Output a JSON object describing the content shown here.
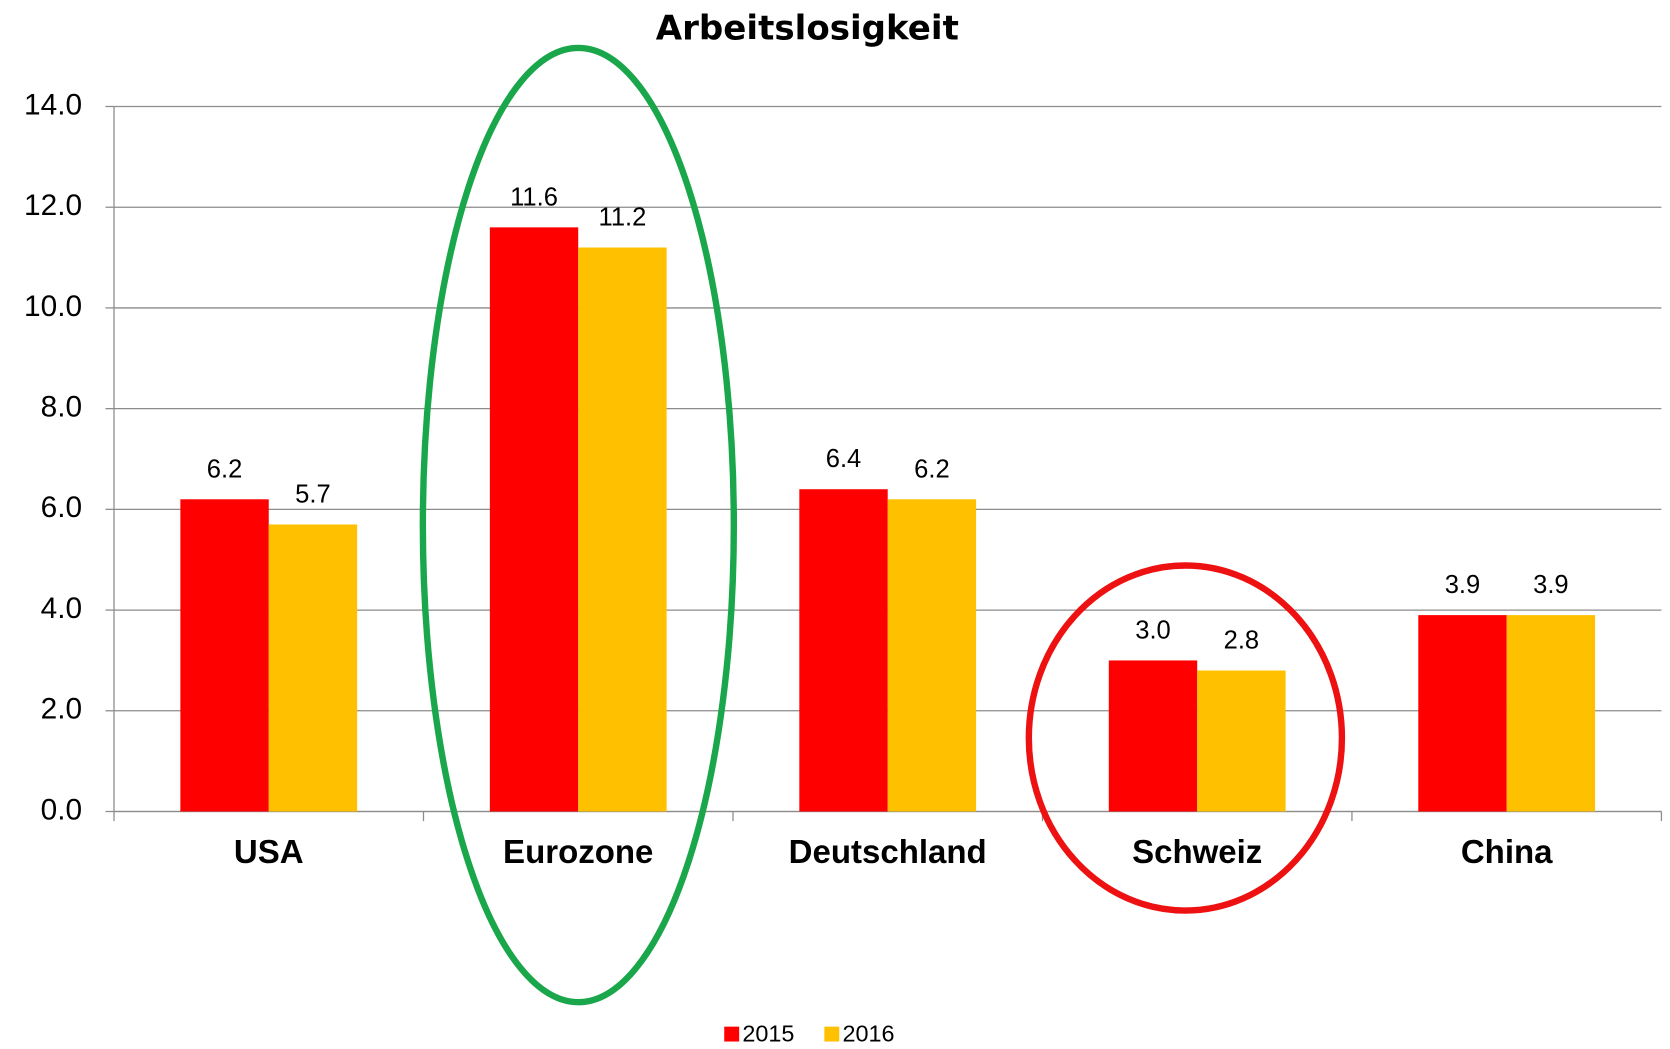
{
  "chart_data": {
    "type": "bar",
    "title": "Arbeitslosigkeit",
    "categories": [
      "USA",
      "Eurozone",
      "Deutschland",
      "Schweiz",
      "China"
    ],
    "series": [
      {
        "name": "2015",
        "color": "#ff0000",
        "values": [
          6.2,
          11.6,
          6.4,
          3.0,
          3.9
        ],
        "value_labels": [
          "6.2",
          "11.6",
          "6.4",
          "3.0",
          "3.9"
        ]
      },
      {
        "name": "2016",
        "color": "#ffc000",
        "values": [
          5.7,
          11.2,
          6.2,
          2.8,
          3.9
        ],
        "value_labels": [
          "5.7",
          "11.2",
          "6.2",
          "2.8",
          "3.9"
        ]
      }
    ],
    "ylim": [
      0,
      14
    ],
    "yticks": [
      {
        "value": 0,
        "label": "0.0"
      },
      {
        "value": 2,
        "label": "2.0"
      },
      {
        "value": 4,
        "label": "4.0"
      },
      {
        "value": 6,
        "label": "6.0"
      },
      {
        "value": 8,
        "label": "8.0"
      },
      {
        "value": 10,
        "label": "10.0"
      },
      {
        "value": 12,
        "label": "12.0"
      },
      {
        "value": 14,
        "label": "14.0"
      }
    ],
    "grid": true,
    "legend": "bottom"
  }
}
